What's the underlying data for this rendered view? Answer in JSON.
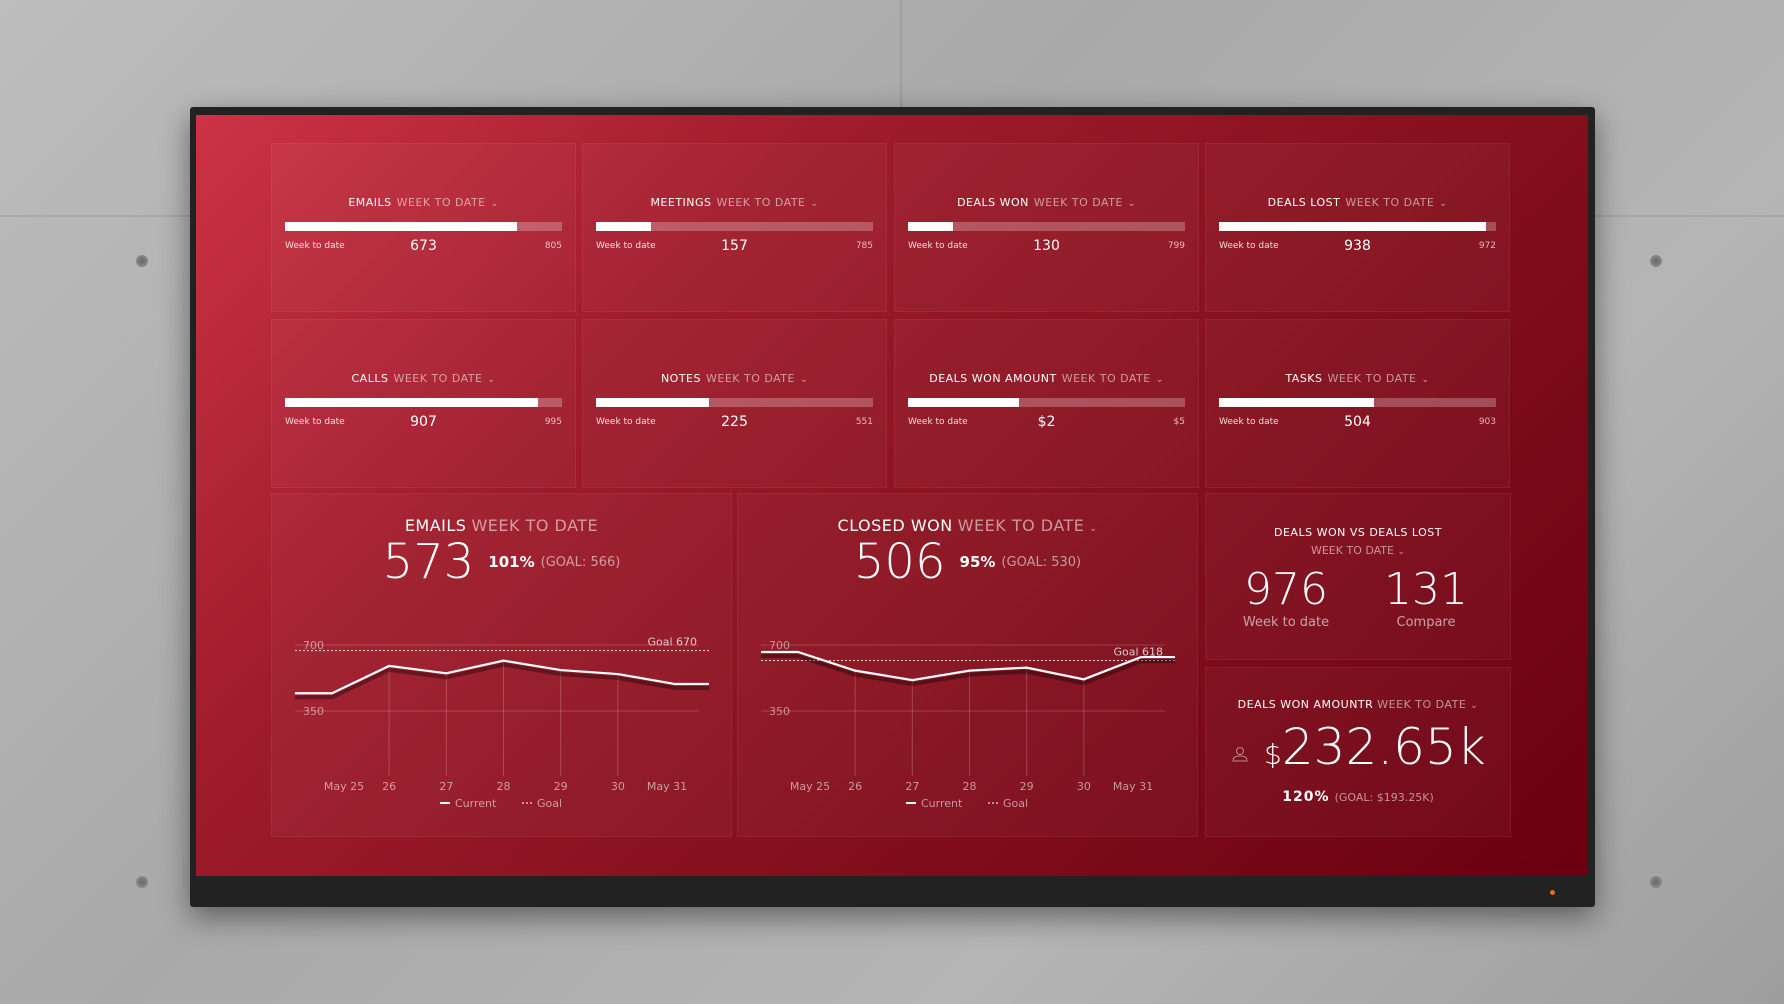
{
  "colors": {
    "accent": "#ffffff",
    "screen_start": "#cc3345",
    "screen_end": "#6a0010"
  },
  "tiles": [
    {
      "title": "EMAILS",
      "period": "WEEK TO DATE",
      "label": "Week to date",
      "value": 673,
      "max": 805
    },
    {
      "title": "MEETINGS",
      "period": "WEEK TO DATE",
      "label": "Week to date",
      "value": 157,
      "max": 785
    },
    {
      "title": "DEALS WON",
      "period": "WEEK TO DATE",
      "label": "Week to date",
      "value": 130,
      "max": 799
    },
    {
      "title": "DEALS LOST",
      "period": "WEEK TO DATE",
      "label": "Week to date",
      "value": 938,
      "max": 972
    },
    {
      "title": "CALLS",
      "period": "WEEK TO DATE",
      "label": "Week to date",
      "value": 907,
      "max": 995
    },
    {
      "title": "NOTES",
      "period": "WEEK TO DATE",
      "label": "Week to date",
      "value": 225,
      "max": 551
    },
    {
      "title": "DEALS WON AMOUNT",
      "period": "WEEK TO DATE",
      "label": "Week to date",
      "value": "$2",
      "max": "$5",
      "fraction": 0.4
    },
    {
      "title": "TASKS",
      "period": "WEEK TO DATE",
      "label": "Week to date",
      "value": 504,
      "max": 903
    }
  ],
  "chart_data": [
    {
      "type": "line",
      "title": "EMAILS",
      "period": "WEEK TO DATE",
      "value": "573",
      "percent": "101%",
      "goal_text": "(GOAL: 566)",
      "categories": [
        "May 25",
        "26",
        "27",
        "28",
        "29",
        "30",
        "May 31"
      ],
      "series": [
        {
          "name": "Current",
          "values": [
            444,
            589,
            550,
            617,
            567,
            546,
            493
          ]
        },
        {
          "name": "Goal",
          "values": [
            670,
            670,
            670,
            670,
            670,
            670,
            670
          ]
        }
      ],
      "goal_label": "Goal 670",
      "yticks": [
        700,
        350
      ],
      "ylim": [
        350,
        700
      ],
      "legend": "bottom"
    },
    {
      "type": "line",
      "title": "CLOSED WON",
      "period": "WEEK TO DATE",
      "value": "506",
      "percent": "95%",
      "goal_text": "(GOAL: 530)",
      "categories": [
        "May 25",
        "26",
        "27",
        "28",
        "29",
        "30",
        "May 31"
      ],
      "series": [
        {
          "name": "Current",
          "values": [
            663,
            564,
            514,
            564,
            580,
            518,
            636
          ]
        },
        {
          "name": "Goal",
          "values": [
            618,
            618,
            618,
            618,
            618,
            618,
            618
          ]
        }
      ],
      "goal_label": "Goal 618",
      "yticks": [
        700,
        350
      ],
      "ylim": [
        350,
        700
      ],
      "legend": "bottom"
    }
  ],
  "versus": {
    "title": "DEALS WON VS DEALS LOST",
    "period": "WEEK TO DATE",
    "a_value": "976",
    "a_label": "Week to date",
    "b_value": "131",
    "b_label": "Compare"
  },
  "amount": {
    "title": "DEALS WON AMOUNTR",
    "period": "WEEK TO DATE",
    "currency": "$",
    "value": "232.65k",
    "percent": "120%",
    "goal_text": "(GOAL: $193.25K)"
  },
  "chevron": "⌄"
}
